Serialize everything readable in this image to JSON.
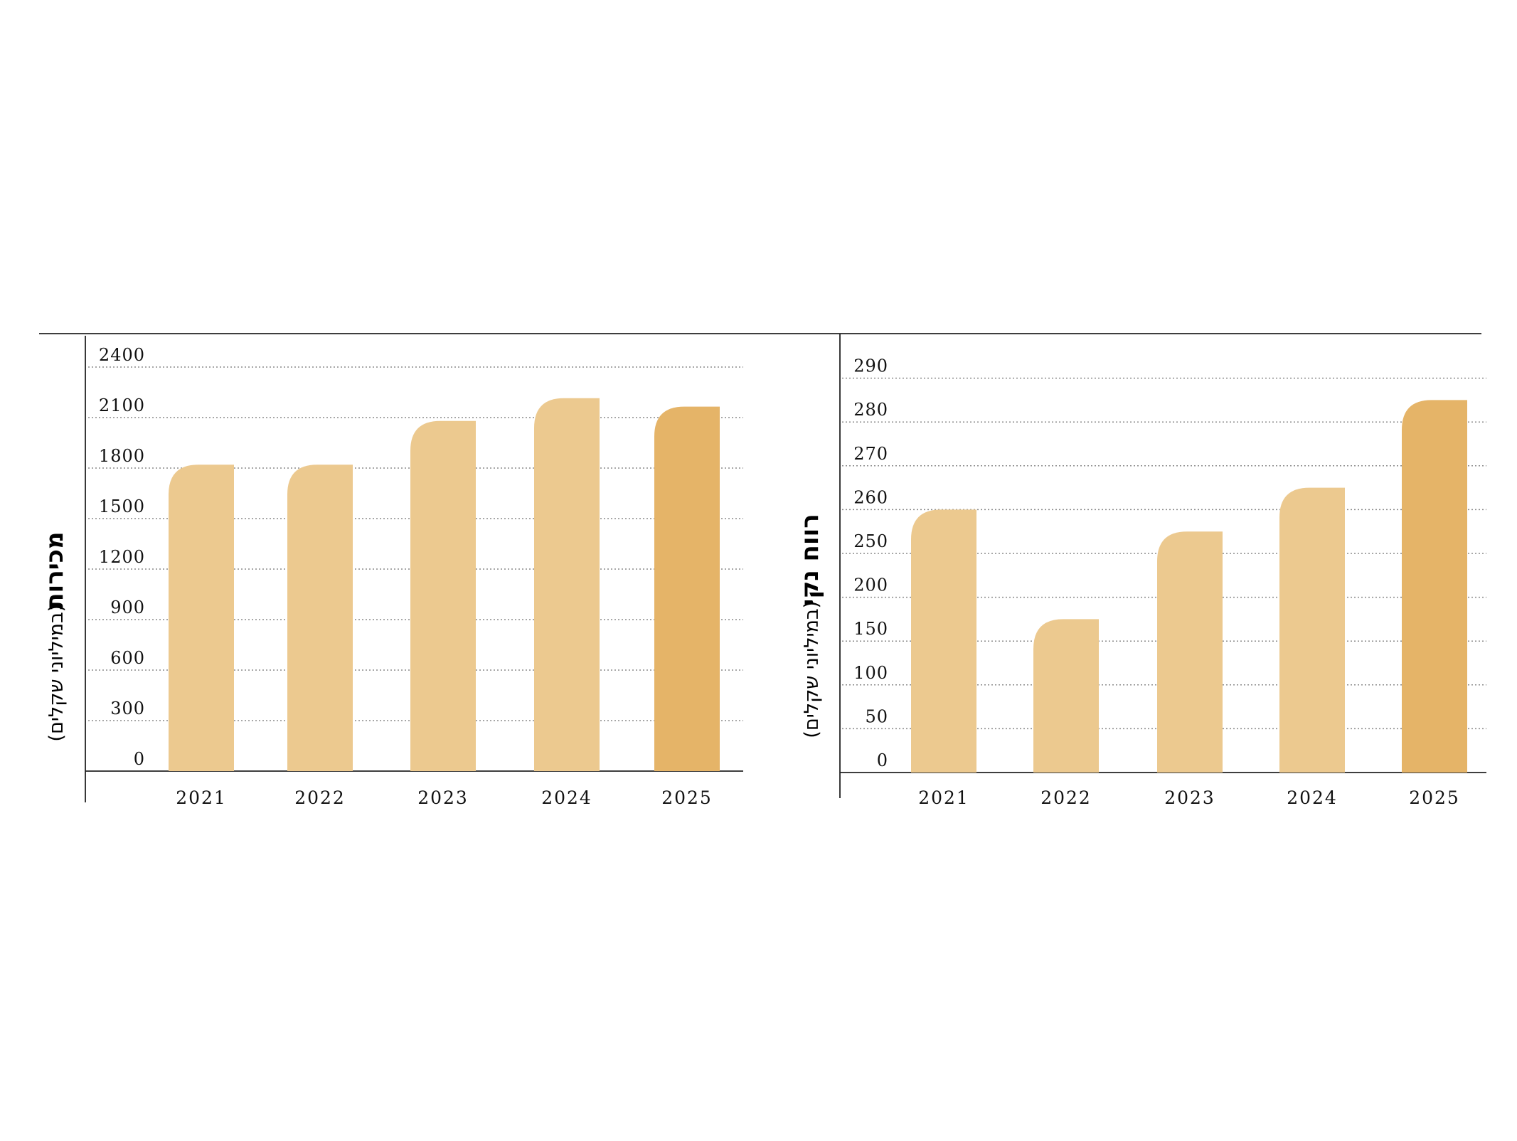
{
  "chart_data": [
    {
      "type": "bar",
      "title": "מכירות",
      "subtitle": "(במיליוני שקלים)",
      "categories": [
        "2021",
        "2022",
        "2023",
        "2024",
        "2025"
      ],
      "values": [
        1820,
        1820,
        2080,
        2215,
        2165
      ],
      "yticks": [
        "0",
        "300",
        "600",
        "900",
        "1200",
        "1500",
        "1800",
        "2100",
        "2400"
      ],
      "ylim": [
        0,
        2400
      ],
      "grid": true,
      "colors": {
        "bar": "#ecc98f",
        "highlight": "#e5b468"
      },
      "highlight_index": 4
    },
    {
      "type": "bar",
      "title": "רווח נקי",
      "subtitle": "(במיליוני שקלים)",
      "categories": [
        "2021",
        "2022",
        "2023",
        "2024",
        "2025"
      ],
      "values": [
        260,
        175,
        255,
        265,
        285
      ],
      "yticks": [
        "0",
        "50",
        "100",
        "150",
        "200",
        "250",
        "260",
        "270",
        "280",
        "290"
      ],
      "ylim": [
        0,
        290
      ],
      "grid": true,
      "colors": {
        "bar": "#ecc98f",
        "highlight": "#e5b468"
      },
      "highlight_index": 4
    }
  ]
}
